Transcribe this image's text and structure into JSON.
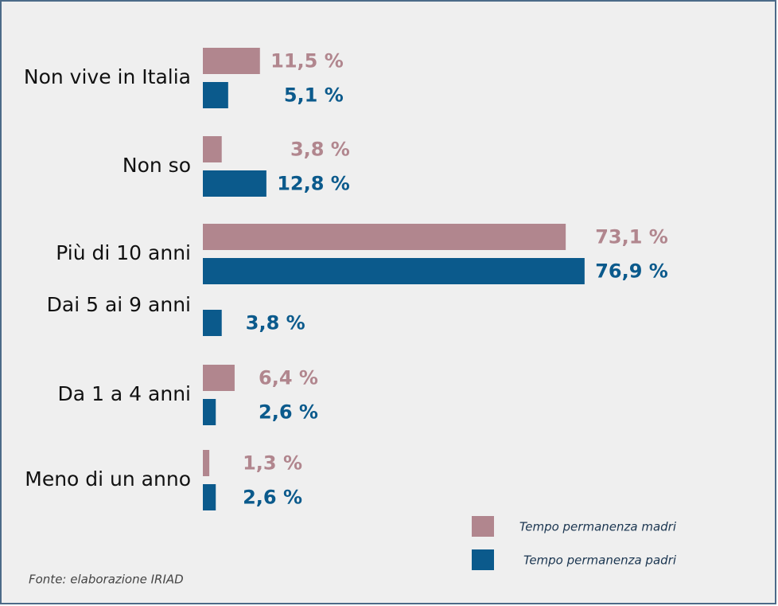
{
  "chart_data": {
    "type": "hbar",
    "categories": [
      "Non vive in Italia",
      "Non so",
      "Più di 10 anni",
      "Dai 5 ai 9 anni",
      "Da 1 a 4 anni",
      "Meno di un anno"
    ],
    "series": [
      {
        "name": "Tempo permanenza madri",
        "color": "#b1868e",
        "values": [
          11.5,
          3.8,
          73.1,
          null,
          6.4,
          1.3
        ],
        "value_labels": [
          "11,5 %",
          "3,8 %",
          "73,1 %",
          null,
          "6,4 %",
          "1,3 %"
        ]
      },
      {
        "name": "Tempo permanenza padri",
        "color": "#0b5a8c",
        "values": [
          5.1,
          12.8,
          76.9,
          3.8,
          2.6,
          2.6
        ],
        "value_labels": [
          "5,1 %",
          "12,8 %",
          "76,9 %",
          "3,8 %",
          "2,6 %",
          "2,6 %"
        ]
      }
    ],
    "source": "Fonte: elaborazione IRIAD"
  }
}
